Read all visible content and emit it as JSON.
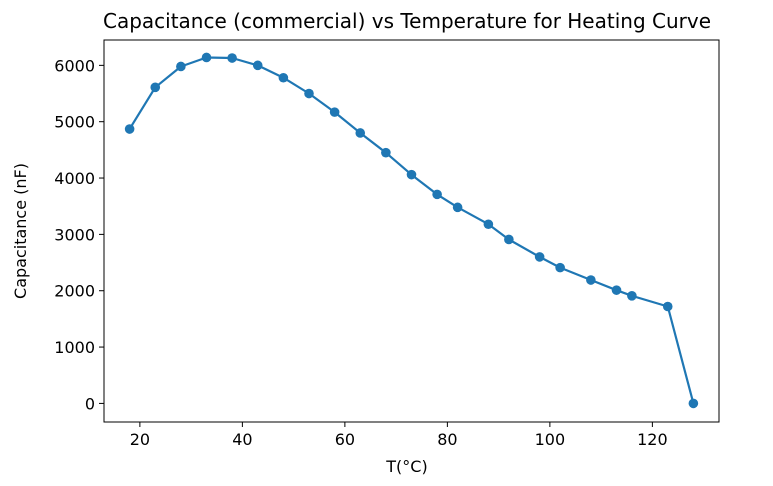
{
  "chart_data": {
    "type": "line",
    "title": "Capacitance (commercial) vs Temperature for Heating Curve",
    "xlabel": "T(°C)",
    "ylabel": "Capacitance (nF)",
    "xlim": [
      13,
      133
    ],
    "ylim": [
      -330,
      6450
    ],
    "xticks": [
      20,
      40,
      60,
      80,
      100,
      120
    ],
    "yticks": [
      0,
      1000,
      2000,
      3000,
      4000,
      5000,
      6000
    ],
    "grid": false,
    "marker": "circle",
    "series": [
      {
        "color": "#1f77b4",
        "x": [
          18,
          23,
          28,
          33,
          38,
          43,
          48,
          53,
          58,
          63,
          68,
          73,
          78,
          82,
          88,
          92,
          98,
          102,
          108,
          113,
          116,
          123,
          128
        ],
        "y": [
          4870,
          5610,
          5980,
          6140,
          6130,
          6000,
          5780,
          5500,
          5170,
          4800,
          4450,
          4060,
          3710,
          3480,
          3180,
          2910,
          2600,
          2410,
          2190,
          2010,
          1910,
          1720,
          0
        ]
      }
    ]
  }
}
